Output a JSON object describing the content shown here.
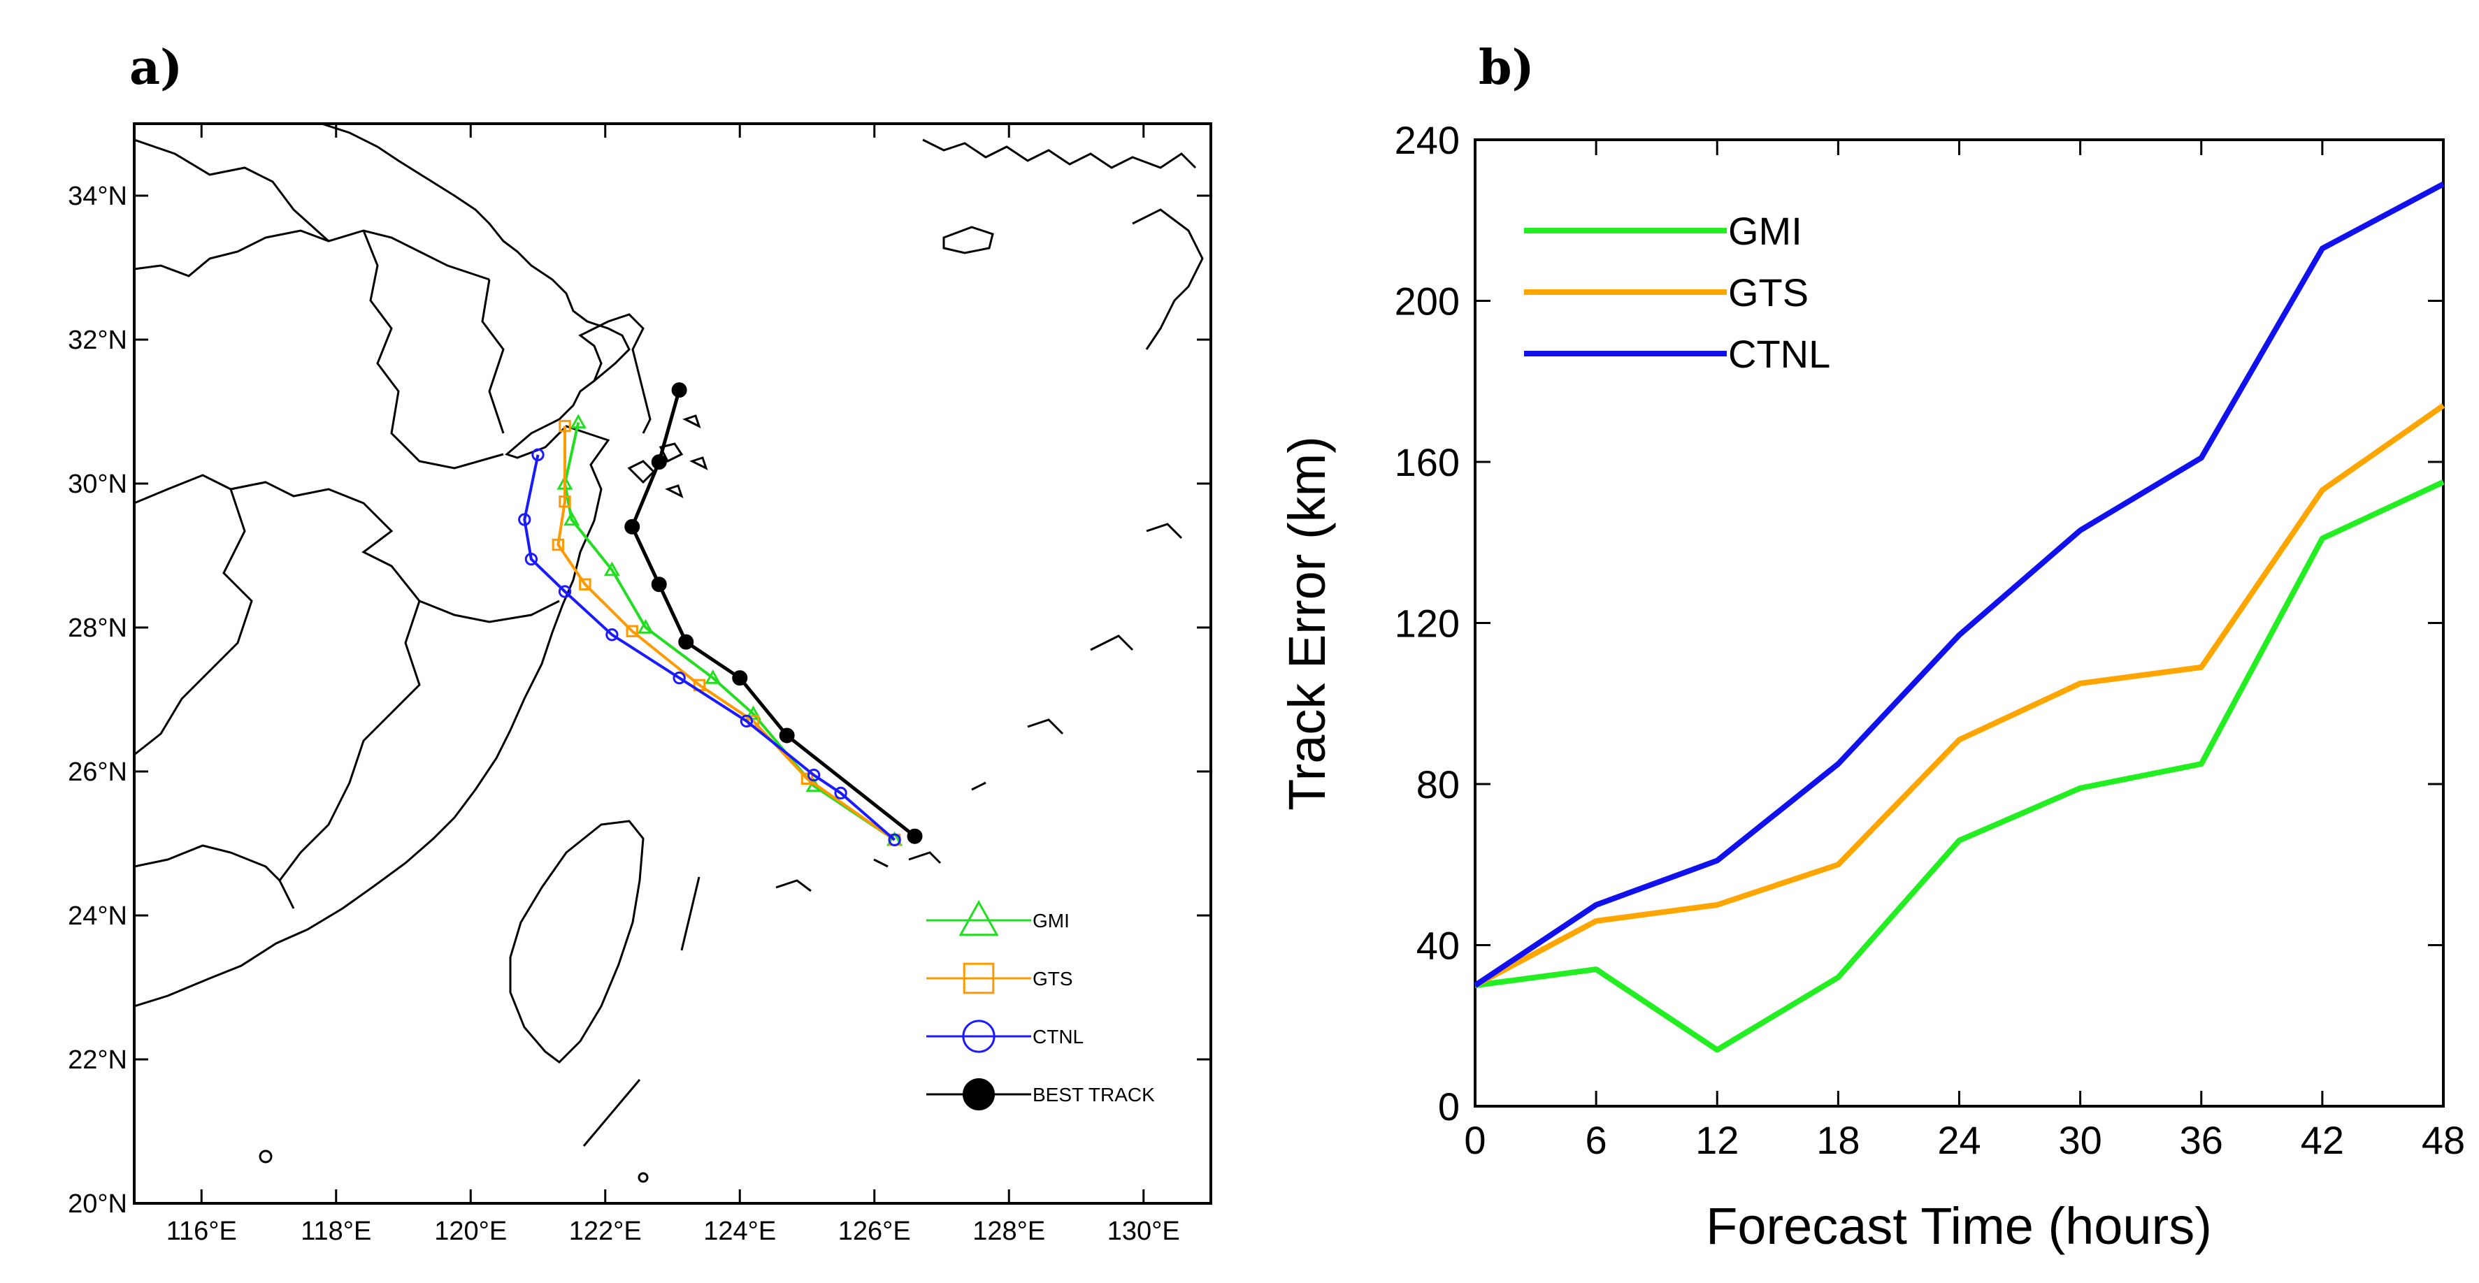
{
  "chart_data": [
    {
      "panel_label": "a)",
      "type": "scatter",
      "subtype": "track-map",
      "xlim": [
        115,
        131
      ],
      "ylim": [
        20,
        35
      ],
      "x_ticks": [
        116,
        118,
        120,
        122,
        124,
        126,
        128,
        130
      ],
      "x_tick_labels": [
        "116°E",
        "118°E",
        "120°E",
        "122°E",
        "124°E",
        "126°E",
        "128°E",
        "130°E"
      ],
      "y_ticks": [
        20,
        22,
        24,
        26,
        28,
        30,
        32,
        34
      ],
      "y_tick_labels": [
        "20°N",
        "22°N",
        "24°N",
        "26°N",
        "28°N",
        "30°N",
        "32°N",
        "34°N"
      ],
      "series": [
        {
          "name": "GMI",
          "color": "#22dd22",
          "marker": "triangle",
          "lon": [
            126.3,
            125.1,
            124.2,
            123.6,
            122.6,
            122.1,
            121.5,
            121.4,
            121.6
          ],
          "lat": [
            25.05,
            25.8,
            26.8,
            27.3,
            28.0,
            28.8,
            29.5,
            30.0,
            30.85
          ]
        },
        {
          "name": "GTS",
          "color": "#ff9900",
          "marker": "square",
          "lon": [
            126.3,
            125.0,
            124.2,
            123.4,
            122.4,
            121.7,
            121.3,
            121.4,
            121.4
          ],
          "lat": [
            25.05,
            25.9,
            26.7,
            27.2,
            27.95,
            28.6,
            29.15,
            29.75,
            30.8
          ]
        },
        {
          "name": "CTNL",
          "color": "#1a1aff",
          "marker": "circle",
          "lon": [
            126.3,
            125.5,
            125.1,
            124.1,
            123.1,
            122.1,
            121.4,
            120.9,
            120.8,
            121.0
          ],
          "lat": [
            25.05,
            25.7,
            25.95,
            26.7,
            27.3,
            27.9,
            28.5,
            28.95,
            29.5,
            30.4
          ]
        },
        {
          "name": "BEST TRACK",
          "color": "#000000",
          "marker": "filled-circle",
          "lon": [
            126.6,
            124.7,
            124.0,
            123.2,
            122.8,
            122.4,
            122.8,
            123.1
          ],
          "lat": [
            25.1,
            26.5,
            27.3,
            27.8,
            28.6,
            29.4,
            30.3,
            31.3
          ]
        }
      ]
    },
    {
      "panel_label": "b)",
      "type": "line",
      "title": "",
      "xlabel": "Forecast Time (hours)",
      "ylabel": "Track Error (km)",
      "categories": [
        0,
        6,
        12,
        18,
        24,
        30,
        36,
        42,
        48
      ],
      "xlim": [
        0,
        48
      ],
      "ylim": [
        0,
        240
      ],
      "y_ticks": [
        0,
        40,
        80,
        120,
        160,
        200,
        240
      ],
      "series": [
        {
          "name": "GMI",
          "color": "#22ee22",
          "values": [
            30,
            34,
            14,
            32,
            66,
            79,
            85,
            141,
            155
          ]
        },
        {
          "name": "GTS",
          "color": "#ffa500",
          "values": [
            30,
            46,
            50,
            60,
            91,
            105,
            109,
            153,
            174
          ]
        },
        {
          "name": "CTNL",
          "color": "#1111ee",
          "values": [
            30,
            50,
            61,
            85,
            117,
            143,
            161,
            213,
            229
          ]
        }
      ]
    }
  ]
}
